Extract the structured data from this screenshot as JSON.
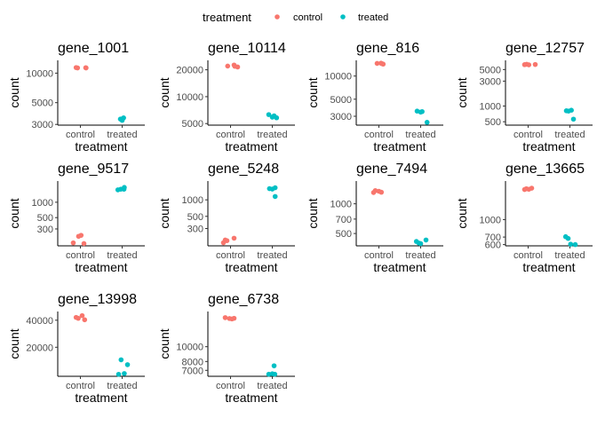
{
  "legend": {
    "title": "treatment",
    "items": [
      {
        "label": "control",
        "color": "#F8766D"
      },
      {
        "label": "treated",
        "color": "#00BFC4"
      }
    ]
  },
  "chart_data": [
    {
      "type": "scatter",
      "title": "gene_1001",
      "xlabel": "treatment",
      "ylabel": "count",
      "categories": [
        "control",
        "treated"
      ],
      "ylog": true,
      "ylim": [
        2950,
        13500
      ],
      "yticks": [
        3000,
        5000,
        10000
      ],
      "ytick_labels": [
        "3000",
        "5000",
        "10000"
      ],
      "series": [
        {
          "name": "control",
          "points": [
            [
              -0.12,
              11400
            ],
            [
              -0.08,
              11300
            ],
            [
              0.15,
              11350
            ],
            [
              0.16,
              11300
            ]
          ]
        },
        {
          "name": "treated",
          "points": [
            [
              -0.05,
              3400
            ],
            [
              0.0,
              3300
            ],
            [
              0.04,
              3500
            ],
            [
              0.02,
              3450
            ]
          ]
        }
      ]
    },
    {
      "type": "scatter",
      "title": "gene_10114",
      "xlabel": "treatment",
      "ylabel": "count",
      "categories": [
        "control",
        "treated"
      ],
      "ylog": true,
      "ylim": [
        4800,
        25500
      ],
      "yticks": [
        5000,
        10000,
        20000
      ],
      "ytick_labels": [
        "5000",
        "10000",
        "20000"
      ],
      "series": [
        {
          "name": "control",
          "points": [
            [
              -0.08,
              22000
            ],
            [
              0.1,
              22600
            ],
            [
              0.2,
              21500
            ],
            [
              0.12,
              21900
            ]
          ]
        },
        {
          "name": "treated",
          "points": [
            [
              -0.1,
              6300
            ],
            [
              0.0,
              5900
            ],
            [
              0.05,
              6100
            ],
            [
              0.12,
              5800
            ]
          ]
        }
      ]
    },
    {
      "type": "scatter",
      "title": "gene_816",
      "xlabel": "treatment",
      "ylabel": "count",
      "categories": [
        "control",
        "treated"
      ],
      "ylog": true,
      "ylim": [
        2300,
        16000
      ],
      "yticks": [
        3000,
        5000,
        10000
      ],
      "ytick_labels": [
        "3000",
        "5000",
        "10000"
      ],
      "series": [
        {
          "name": "control",
          "points": [
            [
              -0.05,
              14600
            ],
            [
              0.06,
              14700
            ],
            [
              0.12,
              14300
            ],
            [
              0.08,
              14500
            ]
          ]
        },
        {
          "name": "treated",
          "points": [
            [
              -0.1,
              3500
            ],
            [
              0.0,
              3400
            ],
            [
              0.04,
              3450
            ],
            [
              0.18,
              2500
            ]
          ]
        }
      ]
    },
    {
      "type": "scatter",
      "title": "gene_12757",
      "xlabel": "treatment",
      "ylabel": "count",
      "categories": [
        "control",
        "treated"
      ],
      "ylog": true,
      "ylim": [
        430,
        7500
      ],
      "yticks": [
        500,
        1000,
        3000,
        5000
      ],
      "ytick_labels": [
        "500",
        "1000",
        "3000",
        "5000"
      ],
      "series": [
        {
          "name": "control",
          "points": [
            [
              -0.1,
              6200
            ],
            [
              -0.04,
              6300
            ],
            [
              0.02,
              6150
            ],
            [
              0.2,
              6250
            ]
          ]
        },
        {
          "name": "treated",
          "points": [
            [
              -0.1,
              810
            ],
            [
              -0.04,
              800
            ],
            [
              0.04,
              830
            ],
            [
              0.1,
              560
            ]
          ]
        }
      ]
    },
    {
      "type": "scatter",
      "title": "gene_9517",
      "xlabel": "treatment",
      "ylabel": "count",
      "categories": [
        "control",
        "treated"
      ],
      "ylog": true,
      "ylim": [
        140,
        2600
      ],
      "yticks": [
        300,
        500,
        1000
      ],
      "ytick_labels": [
        "300",
        "500",
        "1000"
      ],
      "series": [
        {
          "name": "control",
          "points": [
            [
              -0.2,
              160
            ],
            [
              -0.05,
              215
            ],
            [
              0.02,
              225
            ],
            [
              0.1,
              155
            ]
          ]
        },
        {
          "name": "treated",
          "points": [
            [
              -0.12,
              1750
            ],
            [
              -0.04,
              1800
            ],
            [
              0.05,
              1800
            ],
            [
              0.06,
              1950
            ]
          ]
        }
      ]
    },
    {
      "type": "scatter",
      "title": "gene_5248",
      "xlabel": "treatment",
      "ylabel": "count",
      "categories": [
        "control",
        "treated"
      ],
      "ylog": true,
      "ylim": [
        145,
        2200
      ],
      "yticks": [
        300,
        500,
        1000
      ],
      "ytick_labels": [
        "300",
        "500",
        "1000"
      ],
      "series": [
        {
          "name": "control",
          "points": [
            [
              -0.2,
              165
            ],
            [
              -0.15,
              185
            ],
            [
              -0.1,
              180
            ],
            [
              0.1,
              200
            ]
          ]
        },
        {
          "name": "treated",
          "points": [
            [
              -0.08,
              1600
            ],
            [
              0.0,
              1570
            ],
            [
              0.08,
              1660
            ],
            [
              0.08,
              1150
            ]
          ]
        }
      ]
    },
    {
      "type": "scatter",
      "title": "gene_7494",
      "xlabel": "treatment",
      "ylabel": "count",
      "categories": [
        "control",
        "treated"
      ],
      "ylog": true,
      "ylim": [
        375,
        1700
      ],
      "yticks": [
        500,
        700,
        1000
      ],
      "ytick_labels": [
        "500",
        "700",
        "1000"
      ],
      "series": [
        {
          "name": "control",
          "points": [
            [
              -0.15,
              1300
            ],
            [
              -0.1,
              1360
            ],
            [
              0.0,
              1340
            ],
            [
              0.07,
              1310
            ]
          ]
        },
        {
          "name": "treated",
          "points": [
            [
              -0.12,
              415
            ],
            [
              -0.05,
              400
            ],
            [
              0.0,
              395
            ],
            [
              0.15,
              430
            ]
          ]
        }
      ]
    },
    {
      "type": "scatter",
      "title": "gene_13665",
      "xlabel": "treatment",
      "ylabel": "count",
      "categories": [
        "control",
        "treated"
      ],
      "ylog": true,
      "ylim": [
        585,
        2200
      ],
      "yticks": [
        600,
        700,
        1000
      ],
      "ytick_labels": [
        "600",
        "700",
        "1000"
      ],
      "series": [
        {
          "name": "control",
          "points": [
            [
              -0.1,
              1850
            ],
            [
              -0.05,
              1880
            ],
            [
              0.02,
              1860
            ],
            [
              0.1,
              1900
            ]
          ]
        },
        {
          "name": "treated",
          "points": [
            [
              -0.12,
              705
            ],
            [
              -0.05,
              680
            ],
            [
              0.02,
              605
            ],
            [
              0.15,
              600
            ]
          ]
        }
      ]
    },
    {
      "type": "scatter",
      "title": "gene_13998",
      "xlabel": "treatment",
      "ylabel": "count",
      "categories": [
        "control",
        "treated"
      ],
      "ylog": true,
      "ylim": [
        9500,
        50000
      ],
      "yticks": [
        20000,
        40000
      ],
      "ytick_labels": [
        "20000",
        "40000"
      ],
      "series": [
        {
          "name": "control",
          "points": [
            [
              -0.12,
              43000
            ],
            [
              -0.06,
              42000
            ],
            [
              0.05,
              45000
            ],
            [
              0.12,
              40500
            ]
          ]
        },
        {
          "name": "treated",
          "points": [
            [
              -0.1,
              10000
            ],
            [
              -0.03,
              14500
            ],
            [
              0.06,
              10200
            ],
            [
              0.15,
              12800
            ]
          ]
        }
      ]
    },
    {
      "type": "scatter",
      "title": "gene_6738",
      "xlabel": "treatment",
      "ylabel": "count",
      "categories": [
        "control",
        "treated"
      ],
      "ylog": true,
      "ylim": [
        6400,
        17000
      ],
      "yticks": [
        7000,
        8000,
        10000
      ],
      "ytick_labels": [
        "7000",
        "8000",
        "10000"
      ],
      "series": [
        {
          "name": "control",
          "points": [
            [
              -0.15,
              15500
            ],
            [
              -0.03,
              15300
            ],
            [
              0.04,
              15200
            ],
            [
              0.1,
              15350
            ]
          ]
        },
        {
          "name": "treated",
          "points": [
            [
              -0.1,
              6600
            ],
            [
              0.0,
              6650
            ],
            [
              0.05,
              7500
            ],
            [
              0.07,
              6600
            ]
          ]
        }
      ]
    }
  ]
}
